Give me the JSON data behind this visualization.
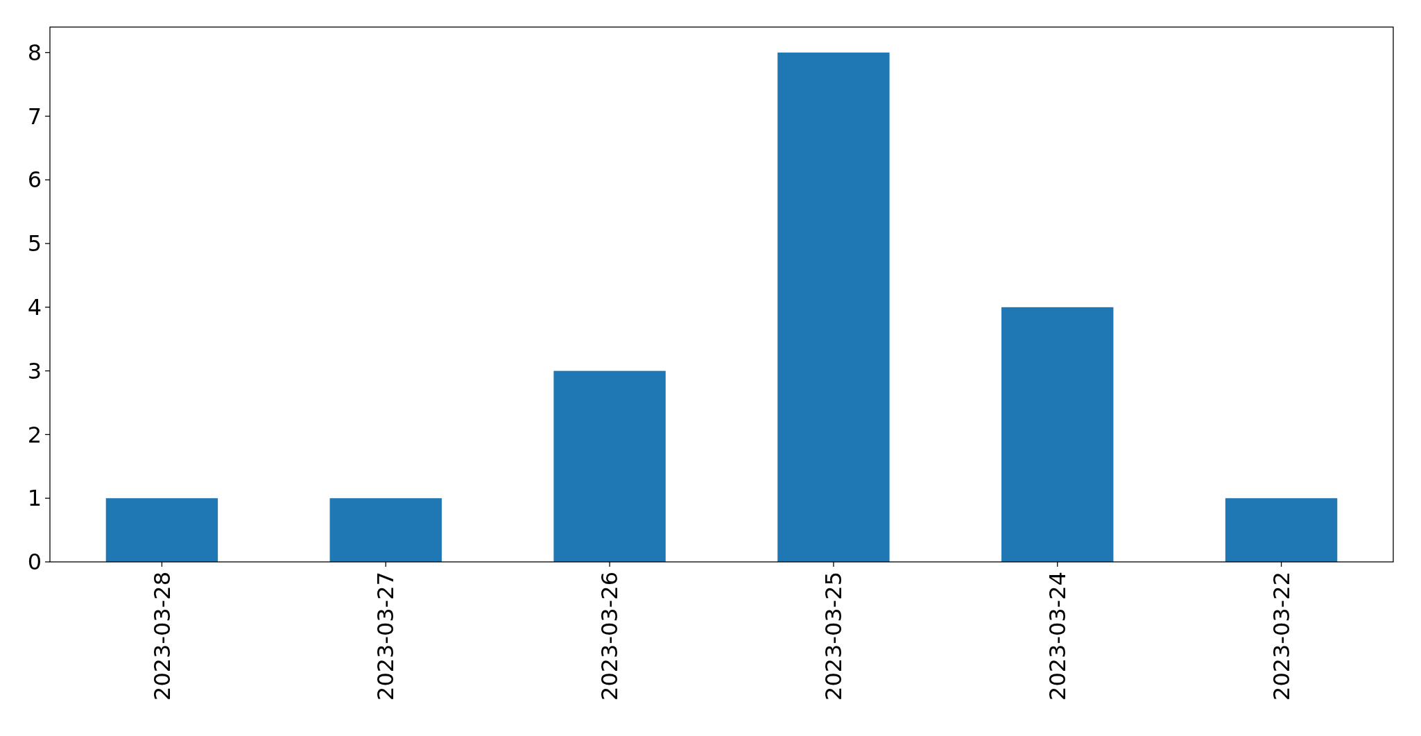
{
  "chart_data": {
    "type": "bar",
    "categories": [
      "2023-03-28",
      "2023-03-27",
      "2023-03-26",
      "2023-03-25",
      "2023-03-24",
      "2023-03-22"
    ],
    "values": [
      1,
      1,
      3,
      8,
      4,
      1
    ],
    "color": "#1f77b4",
    "ylim": [
      0,
      8.4
    ],
    "yticks": [
      0,
      1,
      2,
      3,
      4,
      5,
      6,
      7,
      8
    ],
    "grid": false
  }
}
